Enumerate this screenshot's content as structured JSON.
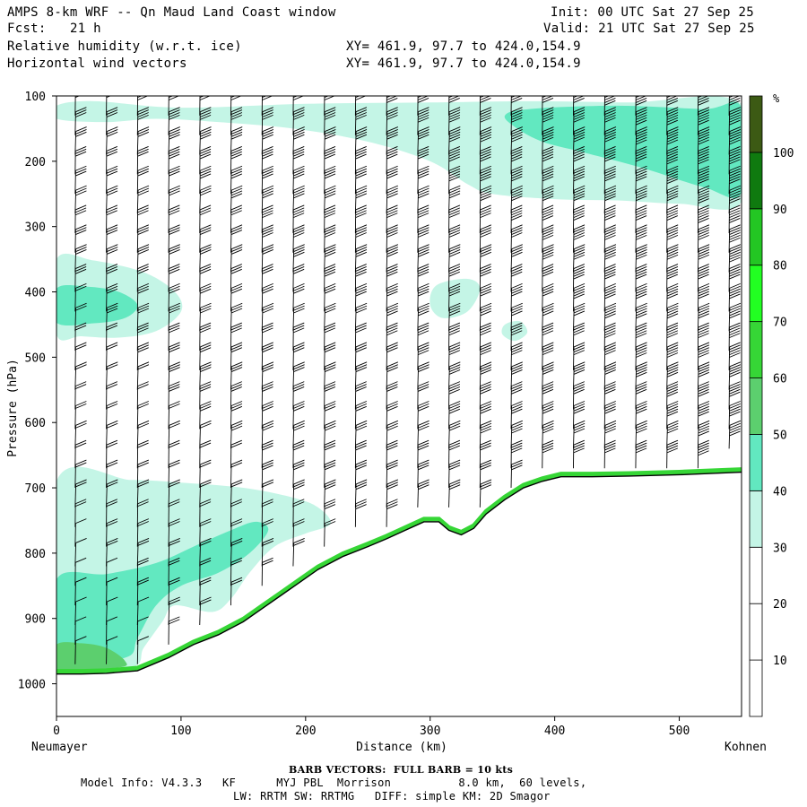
{
  "header": {
    "title": "AMPS 8-km WRF -- Qn Maud Land Coast window",
    "init": "Init: 00 UTC Sat 27 Sep 25",
    "fcst_label": "Fcst:",
    "fcst_value": "21 h",
    "valid": "Valid: 21 UTC Sat 27 Sep 25",
    "field1": "Relative humidity (w.r.t. ice)",
    "field1_xy": "XY= 461.9, 97.7 to 424.0,154.9",
    "field2": "Horizontal wind vectors",
    "field2_xy": "XY= 461.9, 97.7 to 424.0,154.9"
  },
  "footer": {
    "barb_note": "BARB VECTORS:  FULL BARB = 10 kts",
    "model_line1": "Model Info: V4.3.3   KF      MYJ PBL  Morrison          8.0 km,  60 levels,",
    "model_line2": "LW: RRTM SW: RRTMG   DIFF: simple KM: 2D Smagor"
  },
  "colors": {
    "band_30_40": "#c4f5e6",
    "band_40_50": "#62e8c0",
    "band_50_60": "#5ccf6e",
    "band_60_70": "#36d636",
    "band_70_80": "#22ff22",
    "band_80_90": "#23c623",
    "band_90_100": "#0f7a0f",
    "band_100": "#3c5a14",
    "terrain_line": "#000000",
    "barb": "#000000"
  },
  "chart_data": {
    "type": "cross-section",
    "title": "Relative humidity (w.r.t. ice) and horizontal wind barbs",
    "xlabel": "Distance (km)",
    "ylabel": "Pressure (hPa)",
    "xlim": [
      0,
      550
    ],
    "ylim": [
      1050,
      100
    ],
    "x_ticks": [
      0,
      100,
      200,
      300,
      400,
      500
    ],
    "x_tick_labels": [
      "0",
      "100",
      "200",
      "300",
      "400",
      "500"
    ],
    "y_ticks": [
      100,
      200,
      300,
      400,
      500,
      600,
      700,
      800,
      900,
      1000
    ],
    "y_tick_labels": [
      "100",
      "200",
      "300",
      "400",
      "500",
      "600",
      "700",
      "800",
      "900",
      "1000"
    ],
    "x_end_labels": {
      "left": "Neumayer",
      "right": "Kohnen"
    },
    "colorbar": {
      "unit": "%",
      "levels": [
        10,
        20,
        30,
        40,
        50,
        60,
        70,
        80,
        90,
        100
      ],
      "labels": [
        "10",
        "20",
        "30",
        "40",
        "50",
        "60",
        "70",
        "80",
        "90",
        "100"
      ],
      "band_colors": [
        "#ffffff",
        "#ffffff",
        "#ffffff",
        "#c4f5e6",
        "#62e8c0",
        "#5ccf6e",
        "#36d636",
        "#22ff22",
        "#23c623",
        "#0f7a0f",
        "#3c5a14"
      ]
    },
    "terrain_pressure": [
      [
        0,
        985
      ],
      [
        20,
        985
      ],
      [
        40,
        984
      ],
      [
        65,
        980
      ],
      [
        90,
        960
      ],
      [
        110,
        940
      ],
      [
        130,
        925
      ],
      [
        150,
        905
      ],
      [
        165,
        885
      ],
      [
        180,
        865
      ],
      [
        195,
        845
      ],
      [
        210,
        825
      ],
      [
        230,
        805
      ],
      [
        250,
        790
      ],
      [
        265,
        778
      ],
      [
        280,
        765
      ],
      [
        295,
        752
      ],
      [
        307,
        752
      ],
      [
        315,
        765
      ],
      [
        325,
        772
      ],
      [
        335,
        762
      ],
      [
        345,
        740
      ],
      [
        360,
        718
      ],
      [
        375,
        700
      ],
      [
        390,
        690
      ],
      [
        405,
        683
      ],
      [
        430,
        683
      ],
      [
        460,
        682
      ],
      [
        500,
        680
      ],
      [
        550,
        676
      ]
    ],
    "rh_regions": [
      {
        "band": "30-40",
        "points": [
          [
            0,
            115
          ],
          [
            30,
            108
          ],
          [
            100,
            118
          ],
          [
            200,
            112
          ],
          [
            300,
            110
          ],
          [
            380,
            108
          ],
          [
            460,
            110
          ],
          [
            550,
            112
          ],
          [
            550,
            262
          ],
          [
            500,
            265
          ],
          [
            450,
            260
          ],
          [
            400,
            258
          ],
          [
            350,
            250
          ],
          [
            330,
            235
          ],
          [
            300,
            200
          ],
          [
            250,
            170
          ],
          [
            190,
            150
          ],
          [
            130,
            140
          ],
          [
            80,
            135
          ],
          [
            40,
            140
          ],
          [
            0,
            135
          ]
        ]
      },
      {
        "band": "40-50",
        "points": [
          [
            380,
            120
          ],
          [
            450,
            115
          ],
          [
            520,
            120
          ],
          [
            550,
            118
          ],
          [
            550,
            248
          ],
          [
            520,
            240
          ],
          [
            470,
            210
          ],
          [
            420,
            185
          ],
          [
            390,
            170
          ],
          [
            370,
            150
          ],
          [
            360,
            130
          ]
        ]
      },
      {
        "band": "30-40",
        "points": [
          [
            0,
            350
          ],
          [
            30,
            352
          ],
          [
            70,
            370
          ],
          [
            95,
            400
          ],
          [
            100,
            430
          ],
          [
            80,
            460
          ],
          [
            50,
            470
          ],
          [
            20,
            468
          ],
          [
            0,
            465
          ]
        ]
      },
      {
        "band": "40-50",
        "points": [
          [
            0,
            395
          ],
          [
            25,
            392
          ],
          [
            50,
            400
          ],
          [
            65,
            420
          ],
          [
            55,
            440
          ],
          [
            30,
            448
          ],
          [
            0,
            447
          ]
        ]
      },
      {
        "band": "30-40",
        "points": [
          [
            0,
            690
          ],
          [
            60,
            688
          ],
          [
            100,
            692
          ],
          [
            150,
            700
          ],
          [
            190,
            715
          ],
          [
            210,
            730
          ],
          [
            220,
            755
          ],
          [
            200,
            770
          ],
          [
            175,
            790
          ],
          [
            155,
            830
          ],
          [
            140,
            870
          ],
          [
            125,
            890
          ],
          [
            95,
            880
          ],
          [
            85,
            905
          ],
          [
            70,
            945
          ],
          [
            60,
            975
          ],
          [
            0,
            978
          ]
        ]
      },
      {
        "band": "40-50",
        "points": [
          [
            0,
            840
          ],
          [
            40,
            832
          ],
          [
            80,
            815
          ],
          [
            110,
            790
          ],
          [
            140,
            765
          ],
          [
            160,
            752
          ],
          [
            170,
            765
          ],
          [
            155,
            800
          ],
          [
            130,
            830
          ],
          [
            100,
            850
          ],
          [
            80,
            880
          ],
          [
            65,
            930
          ],
          [
            55,
            960
          ],
          [
            0,
            965
          ]
        ]
      },
      {
        "band": "50-60",
        "points": [
          [
            0,
            940
          ],
          [
            20,
            938
          ],
          [
            40,
            945
          ],
          [
            55,
            965
          ],
          [
            50,
            975
          ],
          [
            0,
            978
          ]
        ]
      },
      {
        "band": "30-40",
        "points": [
          [
            305,
            390
          ],
          [
            330,
            380
          ],
          [
            340,
            395
          ],
          [
            330,
            430
          ],
          [
            310,
            440
          ],
          [
            300,
            420
          ]
        ]
      },
      {
        "band": "30-40",
        "points": [
          [
            360,
            450
          ],
          [
            372,
            445
          ],
          [
            378,
            462
          ],
          [
            368,
            475
          ],
          [
            358,
            465
          ]
        ]
      }
    ],
    "barb_columns_km": [
      15,
      40,
      65,
      90,
      115,
      140,
      165,
      190,
      215,
      240,
      265,
      290,
      315,
      340,
      365,
      390,
      415,
      440,
      465,
      490,
      515,
      540
    ],
    "barb_levels_hpa": [
      130,
      160,
      190,
      220,
      250,
      280,
      310,
      340,
      370,
      400,
      430,
      460,
      490,
      520,
      550,
      580,
      610,
      640,
      670,
      700,
      730,
      760,
      790,
      820,
      850,
      880,
      910,
      940,
      970
    ],
    "barb_note": "wind barbs: speed increases toward the east (right) and with height; full barb = 10 kts"
  }
}
